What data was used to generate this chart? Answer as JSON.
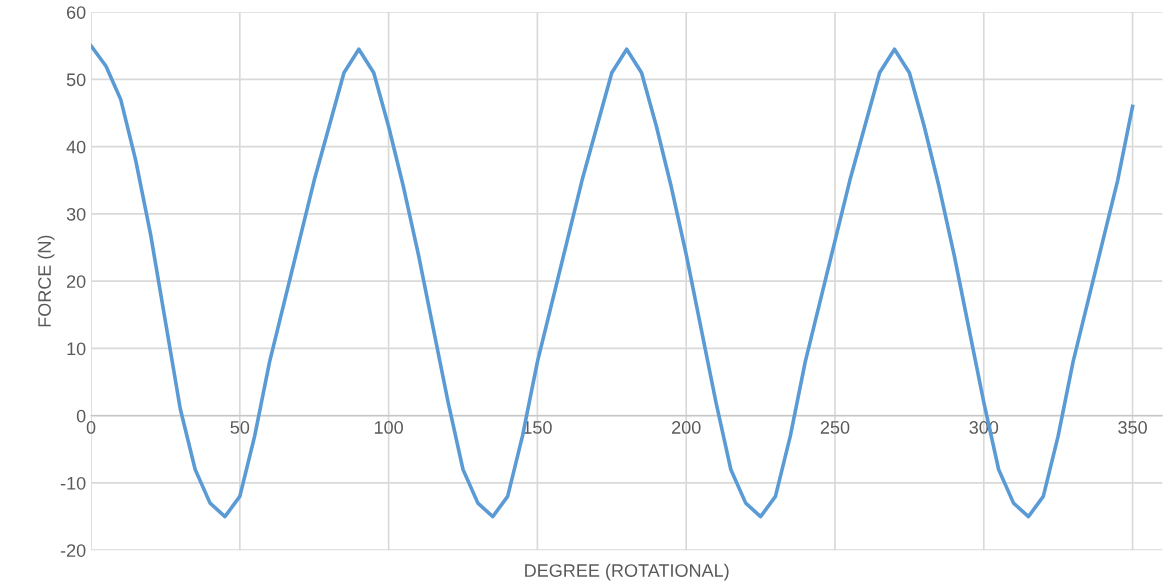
{
  "chart_data": {
    "type": "line",
    "xlabel": "DEGREE (ROTATIONAL)",
    "ylabel": "FORCE (N)",
    "x": [
      0,
      5,
      10,
      15,
      20,
      25,
      30,
      35,
      40,
      45,
      50,
      55,
      60,
      65,
      70,
      75,
      80,
      85,
      90,
      95,
      100,
      105,
      110,
      115,
      120,
      125,
      130,
      135,
      140,
      145,
      150,
      155,
      160,
      165,
      170,
      175,
      180,
      185,
      190,
      195,
      200,
      205,
      210,
      215,
      220,
      225,
      230,
      235,
      240,
      245,
      250,
      255,
      260,
      265,
      270,
      275,
      280,
      285,
      290,
      295,
      300,
      305,
      310,
      315,
      320,
      325,
      330,
      335,
      340,
      345,
      350
    ],
    "series": [
      {
        "color": "#5b9bd5",
        "values": [
          55,
          52,
          47,
          38,
          27,
          14,
          1,
          -8,
          -13,
          -15,
          -12,
          -3,
          8,
          17,
          26,
          35,
          43,
          51,
          54.5,
          51,
          43,
          34,
          24,
          13,
          2,
          -8,
          -13,
          -15,
          -12,
          -3,
          8,
          17,
          26,
          35,
          43,
          51,
          54.5,
          51,
          43,
          34,
          24,
          13,
          2,
          -8,
          -13,
          -15,
          -12,
          -3,
          8,
          17,
          26,
          35,
          43,
          51,
          54.5,
          51,
          43,
          34,
          24,
          13,
          2,
          -8,
          -13,
          -15,
          -12,
          -3,
          8,
          17,
          26,
          35,
          46
        ]
      }
    ],
    "xlim": [
      0,
      360
    ],
    "xticks": [
      0,
      50,
      100,
      150,
      200,
      250,
      300,
      350
    ],
    "ylim": [
      -20,
      60
    ],
    "yticks": [
      -20,
      -10,
      0,
      10,
      20,
      30,
      40,
      50,
      60
    ],
    "grid": true,
    "legend": false,
    "marker": "none",
    "line_style": "solid"
  }
}
